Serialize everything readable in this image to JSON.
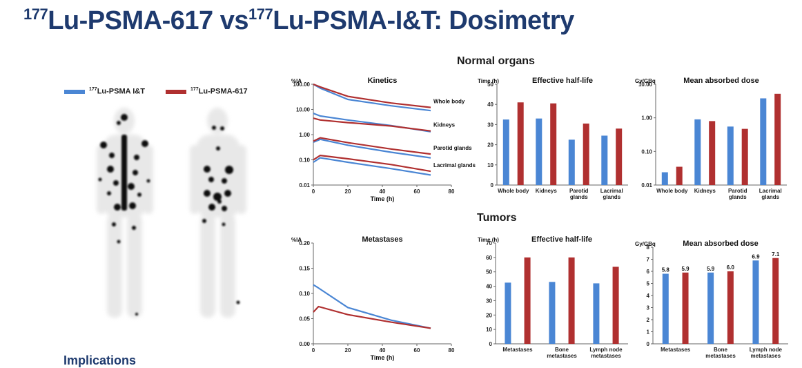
{
  "slide": {
    "title_sup1": "177",
    "title_part1": "Lu-PSMA-617 vs",
    "title_sup2": "177",
    "title_part2": "Lu-PSMA-I&T: Dosimetry",
    "normal_organs_label": "Normal organs",
    "tumors_label": "Tumors",
    "footer_text": "Implications"
  },
  "legend": {
    "items": [
      {
        "sup": "177",
        "label": "Lu-PSMA I&T",
        "color": "#4a86d4"
      },
      {
        "sup": "177",
        "label": "Lu-PSMA-617",
        "color": "#b03030"
      }
    ]
  },
  "colors": {
    "it": "#4a86d4",
    "617": "#b03030"
  },
  "chart_data": [
    {
      "id": "kinetics",
      "type": "line",
      "title": "Kinetics",
      "ylabel": "%IA",
      "xlabel": "Time (h)",
      "yscale": "log",
      "ylim": [
        0.01,
        100
      ],
      "xlim": [
        0,
        80
      ],
      "yticks": [
        100,
        10,
        1,
        0.1,
        0.01
      ],
      "ytick_labels": [
        "100.00",
        "10.00",
        "1.00",
        "0.10",
        "0.01"
      ],
      "xticks": [
        0,
        20,
        40,
        60,
        80
      ],
      "xtick_labels": [
        "0",
        "20",
        "40",
        "60",
        "80"
      ],
      "curve_labels": [
        "Whole body",
        "Kidneys",
        "Parotid glands",
        "Lacrimal glands"
      ],
      "series": [
        {
          "group": "Whole body",
          "agent": "it",
          "x": [
            0,
            4,
            20,
            45,
            68
          ],
          "y": [
            100,
            70,
            25,
            14,
            9
          ]
        },
        {
          "group": "Whole body",
          "agent": "617",
          "x": [
            0,
            4,
            20,
            45,
            68
          ],
          "y": [
            100,
            78,
            33,
            18,
            12
          ]
        },
        {
          "group": "Kidneys",
          "agent": "it",
          "x": [
            0,
            4,
            20,
            45,
            68
          ],
          "y": [
            7,
            5.5,
            3.8,
            2.3,
            1.3
          ]
        },
        {
          "group": "Kidneys",
          "agent": "617",
          "x": [
            0,
            4,
            20,
            45,
            68
          ],
          "y": [
            4.5,
            3.8,
            3,
            2.2,
            1.4
          ]
        },
        {
          "group": "Parotid glands",
          "agent": "it",
          "x": [
            0,
            4,
            20,
            45,
            68
          ],
          "y": [
            0.5,
            0.65,
            0.38,
            0.2,
            0.12
          ]
        },
        {
          "group": "Parotid glands",
          "agent": "617",
          "x": [
            0,
            4,
            20,
            45,
            68
          ],
          "y": [
            0.55,
            0.75,
            0.48,
            0.27,
            0.17
          ]
        },
        {
          "group": "Lacrimal glands",
          "agent": "it",
          "x": [
            0,
            4,
            20,
            45,
            68
          ],
          "y": [
            0.08,
            0.12,
            0.08,
            0.045,
            0.025
          ]
        },
        {
          "group": "Lacrimal glands",
          "agent": "617",
          "x": [
            0,
            4,
            20,
            45,
            68
          ],
          "y": [
            0.1,
            0.15,
            0.11,
            0.065,
            0.035
          ]
        }
      ]
    },
    {
      "id": "normal-half-life",
      "type": "bar",
      "title": "Effective half-life",
      "ylabel": "Time (h)",
      "xlabel": "",
      "ylim": [
        0,
        50
      ],
      "yticks": [
        0,
        10,
        20,
        30,
        40,
        50
      ],
      "ytick_labels": [
        "0",
        "10",
        "20",
        "30",
        "40",
        "50"
      ],
      "categories": [
        "Whole body",
        "Kidneys",
        "Parotid glands",
        "Lacrimal glands"
      ],
      "category_lines": [
        [
          "Whole body"
        ],
        [
          "Kidneys"
        ],
        [
          "Parotid",
          "glands"
        ],
        [
          "Lacrimal",
          "glands"
        ]
      ],
      "series": [
        {
          "agent": "it",
          "values": [
            32.5,
            33,
            22.5,
            24.5
          ]
        },
        {
          "agent": "617",
          "values": [
            41,
            40.5,
            30.5,
            28
          ]
        }
      ]
    },
    {
      "id": "normal-absorbed-dose",
      "type": "bar",
      "title": "Mean absorbed dose",
      "ylabel": "Gy/GBq",
      "xlabel": "",
      "yscale": "log",
      "ylim": [
        0.01,
        10
      ],
      "yticks": [
        10,
        1,
        0.1,
        0.01
      ],
      "ytick_labels": [
        "10.00",
        "1.00",
        "0.10",
        "0.01"
      ],
      "categories": [
        "Whole body",
        "Kidneys",
        "Parotid glands",
        "Lacrimal glands"
      ],
      "category_lines": [
        [
          "Whole body"
        ],
        [
          "Kidneys"
        ],
        [
          "Parotid",
          "glands"
        ],
        [
          "Lacrimal",
          "glands"
        ]
      ],
      "series": [
        {
          "agent": "it",
          "values": [
            0.024,
            0.9,
            0.55,
            3.8
          ]
        },
        {
          "agent": "617",
          "values": [
            0.035,
            0.8,
            0.47,
            5.2
          ]
        }
      ]
    },
    {
      "id": "metastases",
      "type": "line",
      "title": "Metastases",
      "ylabel": "%IA",
      "xlabel": "Time (h)",
      "ylim": [
        0,
        0.2
      ],
      "xlim": [
        0,
        80
      ],
      "yticks": [
        0,
        0.05,
        0.1,
        0.15,
        0.2
      ],
      "ytick_labels": [
        "0.00",
        "0.05",
        "0.10",
        "0.15",
        "0.20"
      ],
      "xticks": [
        0,
        20,
        40,
        60,
        80
      ],
      "xtick_labels": [
        "0",
        "20",
        "40",
        "60",
        "80"
      ],
      "series": [
        {
          "agent": "it",
          "x": [
            0,
            2,
            20,
            45,
            68
          ],
          "y": [
            0.117,
            0.113,
            0.072,
            0.047,
            0.031
          ]
        },
        {
          "agent": "617",
          "x": [
            0,
            3,
            20,
            45,
            68
          ],
          "y": [
            0.063,
            0.074,
            0.058,
            0.043,
            0.031
          ]
        }
      ]
    },
    {
      "id": "tumor-half-life",
      "type": "bar",
      "title": "Effective half-life",
      "ylabel": "Time (h)",
      "xlabel": "",
      "ylim": [
        0,
        70
      ],
      "yticks": [
        0,
        10,
        20,
        30,
        40,
        50,
        60,
        70
      ],
      "ytick_labels": [
        "0",
        "10",
        "20",
        "30",
        "40",
        "50",
        "60",
        "70"
      ],
      "categories": [
        "Metastases",
        "Bone metastases",
        "Lymph node metastases"
      ],
      "category_lines": [
        [
          "Metastases"
        ],
        [
          "Bone",
          "metastases"
        ],
        [
          "Lymph node",
          "metastases"
        ]
      ],
      "series": [
        {
          "agent": "it",
          "values": [
            42.5,
            43,
            42
          ]
        },
        {
          "agent": "617",
          "values": [
            60,
            60,
            53.5
          ]
        }
      ]
    },
    {
      "id": "tumor-absorbed-dose",
      "type": "bar",
      "title": "Mean absorbed dose",
      "ylabel": "Gy/GBq",
      "xlabel": "",
      "ylim": [
        0,
        8
      ],
      "yticks": [
        0,
        1,
        2,
        3,
        4,
        5,
        6,
        7,
        8
      ],
      "ytick_labels": [
        "0",
        "1",
        "2",
        "3",
        "4",
        "5",
        "6",
        "7",
        "8"
      ],
      "categories": [
        "Metastases",
        "Bone metastases",
        "Lymph node metastases"
      ],
      "category_lines": [
        [
          "Metastases"
        ],
        [
          "Bone",
          "metastases"
        ],
        [
          "Lymph node",
          "metastases"
        ]
      ],
      "series": [
        {
          "agent": "it",
          "values": [
            5.8,
            5.9,
            6.9
          ],
          "labels": [
            "5.8",
            "5.9",
            "6.9"
          ]
        },
        {
          "agent": "617",
          "values": [
            5.9,
            6.0,
            7.1
          ],
          "labels": [
            "5.9",
            "6.0",
            "7.1"
          ]
        }
      ]
    }
  ]
}
